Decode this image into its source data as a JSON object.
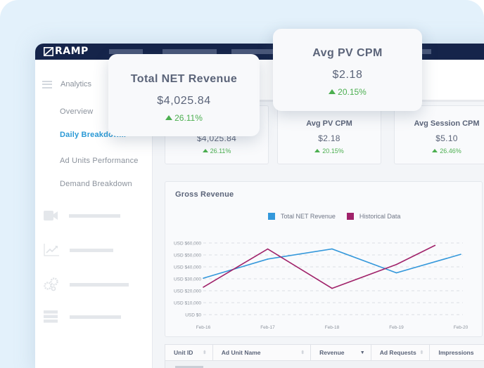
{
  "app": {
    "logo_text": "RAMP"
  },
  "sidebar": {
    "section_title": "Analytics",
    "items": [
      {
        "label": "Overview",
        "active": false
      },
      {
        "label": "Daily Breakdow...",
        "active": true
      },
      {
        "label": "Ad Units Performance",
        "active": false
      },
      {
        "label": "Demand Breakdown",
        "active": false
      }
    ],
    "icon_rows": [
      {
        "icon": "video-camera-icon"
      },
      {
        "icon": "line-chart-icon"
      },
      {
        "icon": "gears-icon"
      },
      {
        "icon": "server-list-icon"
      }
    ]
  },
  "kpis": [
    {
      "title": "Total NET Revenue",
      "value": "$4,025.84",
      "delta": "26.11%",
      "direction": "up"
    },
    {
      "title": "Avg PV CPM",
      "value": "$2.18",
      "delta": "20.15%",
      "direction": "up"
    },
    {
      "title": "Avg Session CPM",
      "value": "$5.10",
      "delta": "26.46%",
      "direction": "up"
    }
  ],
  "floating_cards": [
    {
      "title": "Total NET Revenue",
      "value": "$4,025.84",
      "delta": "26.11%"
    },
    {
      "title": "Avg PV CPM",
      "value": "$2.18",
      "delta": "20.15%"
    }
  ],
  "colors": {
    "brand_navy": "#15244a",
    "accent_blue": "#2b9ad6",
    "positive_green": "#4caf50",
    "series_blue": "#3498db",
    "series_purple": "#a0226a"
  },
  "chart_data": {
    "type": "line",
    "title": "Gross Revenue",
    "xlabel": "",
    "ylabel": "",
    "categories": [
      "Feb-16",
      "Feb-17",
      "Feb-18",
      "Feb-19",
      "Feb-20"
    ],
    "y_ticks": [
      "USD $0",
      "USD $10,000",
      "USD $20,000",
      "USD $30,000",
      "USD $40,000",
      "USD $50,000",
      "USD $60,000"
    ],
    "ylim": [
      0,
      60000
    ],
    "grid": true,
    "legend_position": "top-center",
    "series": [
      {
        "name": "Total NET Revenue",
        "color": "#3498db",
        "x": [
          0,
          1,
          2,
          3,
          4
        ],
        "values": [
          30500,
          46500,
          55000,
          35000,
          50500
        ]
      },
      {
        "name": "Historical Data",
        "color": "#a0226a",
        "x": [
          0,
          1,
          2,
          3,
          3.6
        ],
        "values": [
          23000,
          55000,
          22000,
          42000,
          58000
        ]
      }
    ]
  },
  "table": {
    "columns": [
      {
        "label": "Unit ID",
        "sort": "none"
      },
      {
        "label": "Ad Unit Name",
        "sort": "none"
      },
      {
        "label": "Revenue",
        "sort": "desc"
      },
      {
        "label": "Ad Requests",
        "sort": "none"
      },
      {
        "label": "Impressions",
        "sort": "none"
      }
    ]
  }
}
